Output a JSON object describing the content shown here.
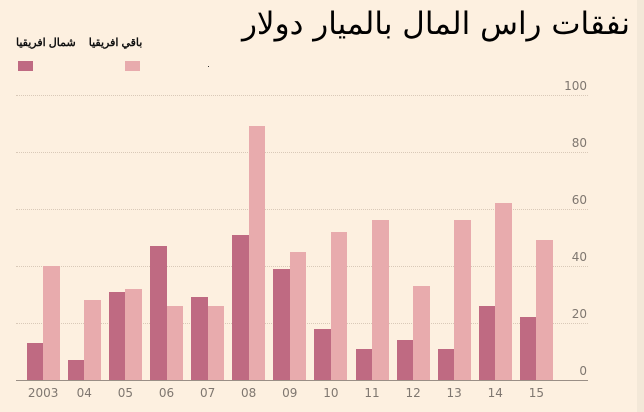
{
  "title": "نفقات راس المال بالميار دولار",
  "legend": [
    {
      "label": "شمال افريقيا",
      "color": "#bf6a82"
    },
    {
      "label": "باقي افريقيا",
      "color": "#e8abad"
    }
  ],
  "colors": {
    "background": "#fdf0e0",
    "north_africa": "#bf6a82",
    "rest_of_africa": "#e8abad",
    "grid": "#d9c9b8",
    "axis_text": "#7f7770"
  },
  "chart_data": {
    "type": "bar",
    "title": "نفقات راس المال بالميار دولار",
    "xlabel": "",
    "ylabel": "",
    "categories": [
      "2003",
      "04",
      "05",
      "06",
      "07",
      "08",
      "09",
      "10",
      "11",
      "12",
      "13",
      "14",
      "15"
    ],
    "series": [
      {
        "name": "شمال افريقيا",
        "values": [
          13,
          7,
          31,
          47,
          29,
          51,
          39,
          18,
          11,
          14,
          11,
          26,
          22
        ]
      },
      {
        "name": "باقي افريقيا",
        "values": [
          40,
          28,
          32,
          26,
          26,
          89,
          45,
          52,
          56,
          33,
          56,
          62,
          49
        ]
      }
    ],
    "ylim": [
      0,
      100
    ],
    "yticks": [
      0,
      20,
      40,
      60,
      80,
      100
    ],
    "ytick_labels": [
      "0",
      "20",
      "40",
      "60",
      "80",
      "100"
    ],
    "y_axis_position": "right",
    "grid": true,
    "legend_position": "top-left"
  }
}
